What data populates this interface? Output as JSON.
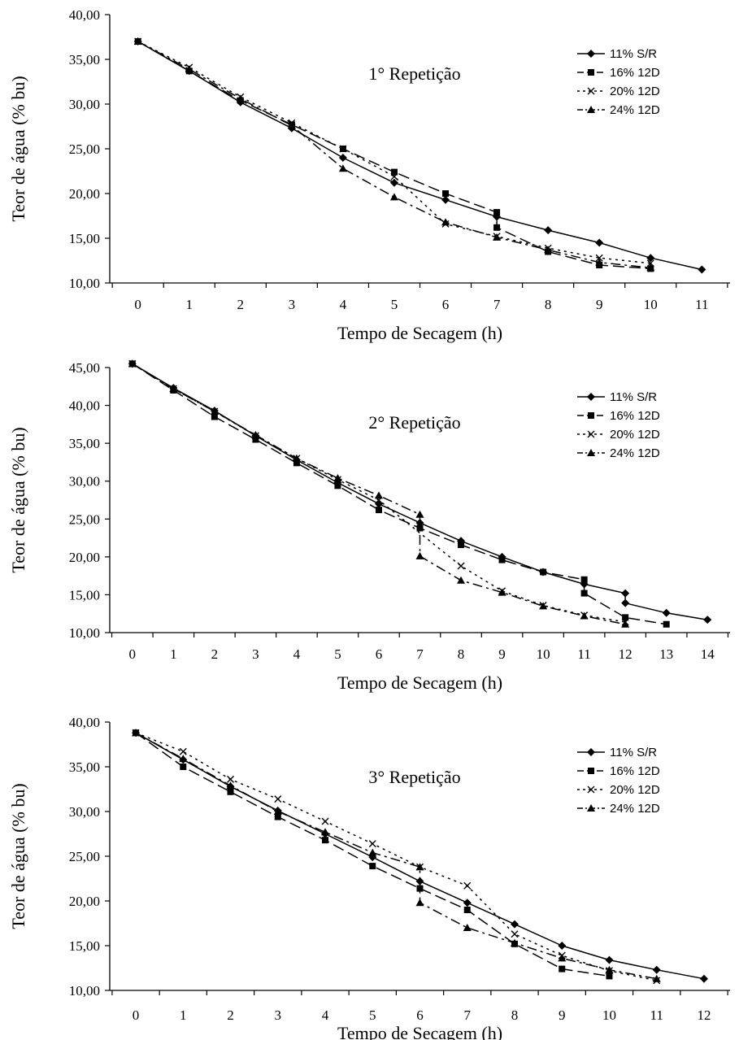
{
  "chart_data": [
    {
      "type": "line",
      "title": "1° Repetição",
      "xlabel": "Tempo de Secagem (h)",
      "ylabel": "Teor de água (% bu)",
      "xlim": [
        0,
        11
      ],
      "ylim": [
        10,
        40
      ],
      "x_ticks": [
        "0",
        "1",
        "2",
        "3",
        "4",
        "5",
        "6",
        "7",
        "8",
        "9",
        "10",
        "11"
      ],
      "y_ticks": [
        "10,00",
        "15,00",
        "20,00",
        "25,00",
        "30,00",
        "35,00",
        "40,00"
      ],
      "grid": false,
      "legend_position": "top-right",
      "series": [
        {
          "name": "11% S/R",
          "marker": "diamond",
          "dash": "solid",
          "points": [
            [
              0,
              37.0
            ],
            [
              1,
              33.7
            ],
            [
              2,
              30.2
            ],
            [
              3,
              27.3
            ],
            [
              4,
              24.0
            ],
            [
              5,
              21.2
            ],
            [
              6,
              19.3
            ],
            [
              7,
              17.4
            ],
            [
              8,
              15.9
            ],
            [
              9,
              14.5
            ],
            [
              10,
              12.8
            ],
            [
              11,
              11.5
            ]
          ]
        },
        {
          "name": "16% 12D",
          "marker": "square",
          "dash": "longdash",
          "points": [
            [
              0,
              37.0
            ],
            [
              1,
              33.7
            ],
            [
              2,
              30.4
            ],
            [
              3,
              27.7
            ],
            [
              4,
              25.0
            ],
            [
              5,
              22.4
            ],
            [
              6,
              20.0
            ],
            [
              7,
              17.9
            ],
            [
              7,
              16.2
            ],
            [
              8,
              13.5
            ],
            [
              9,
              12.0
            ],
            [
              10,
              11.6
            ]
          ]
        },
        {
          "name": "20% 12D",
          "marker": "x",
          "dash": "dotted",
          "points": [
            [
              0,
              37.0
            ],
            [
              1,
              34.1
            ],
            [
              2,
              30.8
            ],
            [
              3,
              27.9
            ],
            [
              4,
              25.0
            ],
            [
              5,
              21.9
            ],
            [
              6,
              16.6
            ],
            [
              7,
              15.2
            ],
            [
              8,
              13.9
            ],
            [
              9,
              12.8
            ],
            [
              10,
              12.2
            ]
          ]
        },
        {
          "name": "24% 12D",
          "marker": "triangle",
          "dash": "dashdot",
          "points": [
            [
              0,
              37.0
            ],
            [
              1,
              33.9
            ],
            [
              2,
              30.6
            ],
            [
              3,
              27.6
            ],
            [
              4,
              22.8
            ],
            [
              5,
              19.6
            ],
            [
              6,
              16.8
            ],
            [
              7,
              15.1
            ],
            [
              8,
              13.7
            ],
            [
              9,
              12.3
            ],
            [
              10,
              11.7
            ]
          ]
        }
      ]
    },
    {
      "type": "line",
      "title": "2° Repetição",
      "xlabel": "Tempo de Secagem (h)",
      "ylabel": "Teor de água (% bu)",
      "xlim": [
        0,
        14
      ],
      "ylim": [
        10,
        45
      ],
      "x_ticks": [
        "0",
        "1",
        "2",
        "3",
        "4",
        "5",
        "6",
        "7",
        "8",
        "9",
        "10",
        "11",
        "12",
        "13",
        "14"
      ],
      "y_ticks": [
        "10,00",
        "15,00",
        "20,00",
        "25,00",
        "30,00",
        "35,00",
        "40,00",
        "45,00"
      ],
      "grid": false,
      "legend_position": "top-right",
      "series": [
        {
          "name": "11% S/R",
          "marker": "diamond",
          "dash": "solid",
          "points": [
            [
              0,
              45.5
            ],
            [
              1,
              42.3
            ],
            [
              2,
              39.3
            ],
            [
              3,
              36.0
            ],
            [
              4,
              32.8
            ],
            [
              5,
              29.8
            ],
            [
              6,
              27.0
            ],
            [
              7,
              24.5
            ],
            [
              8,
              22.1
            ],
            [
              9,
              20.0
            ],
            [
              10,
              18.0
            ],
            [
              11,
              16.4
            ],
            [
              12,
              15.2
            ],
            [
              12,
              13.9
            ],
            [
              13,
              12.6
            ],
            [
              14,
              11.7
            ]
          ]
        },
        {
          "name": "16% 12D",
          "marker": "square",
          "dash": "longdash",
          "points": [
            [
              0,
              45.5
            ],
            [
              1,
              42.0
            ],
            [
              2,
              38.5
            ],
            [
              3,
              35.5
            ],
            [
              4,
              32.4
            ],
            [
              5,
              29.4
            ],
            [
              6,
              26.2
            ],
            [
              7,
              23.8
            ],
            [
              8,
              21.6
            ],
            [
              9,
              19.6
            ],
            [
              10,
              18.0
            ],
            [
              11,
              17.0
            ],
            [
              11,
              15.2
            ],
            [
              12,
              12.0
            ],
            [
              13,
              11.1
            ]
          ]
        },
        {
          "name": "20% 12D",
          "marker": "x",
          "dash": "dotted",
          "points": [
            [
              0,
              45.5
            ],
            [
              1,
              42.2
            ],
            [
              2,
              39.2
            ],
            [
              3,
              36.0
            ],
            [
              4,
              33.0
            ],
            [
              5,
              30.2
            ],
            [
              6,
              27.5
            ],
            [
              8,
              18.8
            ],
            [
              9,
              15.5
            ],
            [
              10,
              13.6
            ],
            [
              11,
              12.3
            ],
            [
              12,
              11.4
            ]
          ]
        },
        {
          "name": "24% 12D",
          "marker": "triangle",
          "dash": "dashdot",
          "points": [
            [
              0,
              45.5
            ],
            [
              1,
              42.2
            ],
            [
              2,
              39.2
            ],
            [
              3,
              36.1
            ],
            [
              4,
              33.0
            ],
            [
              5,
              30.4
            ],
            [
              6,
              28.1
            ],
            [
              7,
              25.6
            ],
            [
              7,
              20.1
            ],
            [
              8,
              16.9
            ],
            [
              9,
              15.3
            ],
            [
              10,
              13.5
            ],
            [
              11,
              12.2
            ],
            [
              12,
              11.1
            ]
          ]
        }
      ]
    },
    {
      "type": "line",
      "title": "3° Repetição",
      "xlabel": "Tempo de Secagem (h)",
      "ylabel": "Teor de água (% bu)",
      "xlim": [
        0,
        12
      ],
      "ylim": [
        10,
        40
      ],
      "x_ticks": [
        "0",
        "1",
        "2",
        "3",
        "4",
        "5",
        "6",
        "7",
        "8",
        "9",
        "10",
        "11",
        "12"
      ],
      "y_ticks": [
        "10,00",
        "15,00",
        "20,00",
        "25,00",
        "30,00",
        "35,00",
        "40,00"
      ],
      "grid": false,
      "legend_position": "top-right",
      "series": [
        {
          "name": "11% S/R",
          "marker": "diamond",
          "dash": "solid",
          "points": [
            [
              0,
              38.8
            ],
            [
              1,
              35.8
            ],
            [
              2,
              32.8
            ],
            [
              3,
              30.1
            ],
            [
              4,
              27.5
            ],
            [
              5,
              24.9
            ],
            [
              6,
              22.2
            ],
            [
              7,
              19.8
            ],
            [
              8,
              17.4
            ],
            [
              9,
              15.0
            ],
            [
              10,
              13.4
            ],
            [
              11,
              12.3
            ],
            [
              12,
              11.3
            ]
          ]
        },
        {
          "name": "16% 12D",
          "marker": "square",
          "dash": "longdash",
          "points": [
            [
              0,
              38.8
            ],
            [
              1,
              35.0
            ],
            [
              2,
              32.2
            ],
            [
              3,
              29.4
            ],
            [
              4,
              26.8
            ],
            [
              5,
              23.9
            ],
            [
              6,
              21.4
            ],
            [
              7,
              19.0
            ],
            [
              8,
              15.2
            ],
            [
              9,
              12.4
            ],
            [
              10,
              11.6
            ]
          ]
        },
        {
          "name": "20% 12D",
          "marker": "x",
          "dash": "dotted",
          "points": [
            [
              0,
              38.8
            ],
            [
              1,
              36.7
            ],
            [
              2,
              33.6
            ],
            [
              3,
              31.4
            ],
            [
              4,
              28.9
            ],
            [
              5,
              26.4
            ],
            [
              6,
              23.8
            ],
            [
              7,
              21.7
            ],
            [
              8,
              16.3
            ],
            [
              9,
              13.9
            ],
            [
              10,
              12.2
            ],
            [
              11,
              11.1
            ]
          ]
        },
        {
          "name": "24% 12D",
          "marker": "triangle",
          "dash": "dashdot",
          "points": [
            [
              0,
              38.8
            ],
            [
              1,
              35.9
            ],
            [
              2,
              32.9
            ],
            [
              3,
              30.0
            ],
            [
              4,
              27.7
            ],
            [
              5,
              25.4
            ],
            [
              6,
              23.8
            ],
            [
              6,
              19.8
            ],
            [
              7,
              17.0
            ],
            [
              8,
              15.3
            ],
            [
              9,
              13.6
            ],
            [
              10,
              12.3
            ],
            [
              11,
              11.3
            ]
          ]
        }
      ]
    }
  ]
}
